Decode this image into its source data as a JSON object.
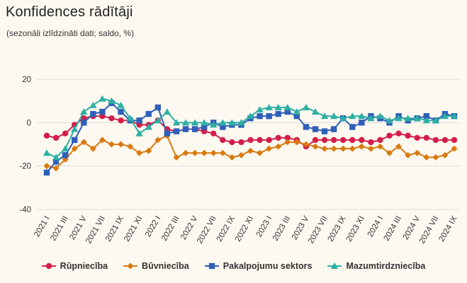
{
  "title": "Konfidences rādītāji",
  "subtitle": "(sezonāli izlīdzināti dati; saldo, %)",
  "chart_data": {
    "type": "line",
    "ylim": [
      -40,
      20
    ],
    "yticks": [
      20,
      0,
      -20,
      -40
    ],
    "grid": true,
    "legend_position": "bottom",
    "x_tick_labels": [
      "2021 I",
      "2021 III",
      "2021 V",
      "2021 VII",
      "2021 IX",
      "2021 XI",
      "2022 I",
      "2022 III",
      "2022 V",
      "2022 VII",
      "2022 IX",
      "2022 XI",
      "2023 I",
      "2023 III",
      "2023 V",
      "2023 VII",
      "2023 IX",
      "2023 XI",
      "2024 I",
      "2024 III",
      "2024 V",
      "2024 VII",
      "2024 IX"
    ],
    "x": [
      "2021 I",
      "2021 II",
      "2021 III",
      "2021 IV",
      "2021 V",
      "2021 VI",
      "2021 VII",
      "2021 VIII",
      "2021 IX",
      "2021 X",
      "2021 XI",
      "2021 XII",
      "2022 I",
      "2022 II",
      "2022 III",
      "2022 IV",
      "2022 V",
      "2022 VI",
      "2022 VII",
      "2022 VIII",
      "2022 IX",
      "2022 X",
      "2022 XI",
      "2022 XII",
      "2023 I",
      "2023 II",
      "2023 III",
      "2023 IV",
      "2023 V",
      "2023 VI",
      "2023 VII",
      "2023 VIII",
      "2023 IX",
      "2023 X",
      "2023 XI",
      "2023 XII",
      "2024 I",
      "2024 II",
      "2024 III",
      "2024 IV",
      "2024 V",
      "2024 VI",
      "2024 VII",
      "2024 VIII",
      "2024 IX"
    ],
    "series": [
      {
        "name": "Rūpniecība",
        "color": "#d21f4a",
        "marker": "circle",
        "values": [
          -6,
          -7,
          -5,
          -1,
          2,
          3,
          3,
          2,
          1,
          1,
          -1,
          -1,
          1,
          -3,
          -4,
          -3,
          -3,
          -4,
          -5,
          -8,
          -9,
          -9,
          -8,
          -8,
          -8,
          -7,
          -7,
          -8,
          -11,
          -8,
          -8,
          -8,
          -8,
          -8,
          -8,
          -9,
          -8,
          -6,
          -5,
          -6,
          -7,
          -7,
          -8,
          -8,
          -8
        ]
      },
      {
        "name": "Būvniecība",
        "color": "#d97a10",
        "marker": "diamond",
        "values": [
          -20,
          -21,
          -17,
          -12,
          -9,
          -12,
          -8,
          -10,
          -10,
          -11,
          -14,
          -13,
          -8,
          -6,
          -16,
          -14,
          -14,
          -14,
          -14,
          -14,
          -16,
          -15,
          -13,
          -14,
          -12,
          -11,
          -9,
          -9,
          -10,
          -11,
          -12,
          -12,
          -12,
          -12,
          -11,
          -12,
          -11,
          -14,
          -11,
          -15,
          -14,
          -16,
          -16,
          -15,
          -12
        ]
      },
      {
        "name": "Pakalpojumu sektors",
        "color": "#2f5fb8",
        "marker": "square",
        "values": [
          -23,
          -18,
          -15,
          -8,
          0,
          4,
          5,
          9,
          5,
          1,
          1,
          4,
          7,
          -5,
          -4,
          -3,
          -3,
          -2,
          0,
          -2,
          -1,
          -1,
          2,
          3,
          3,
          4,
          5,
          3,
          -2,
          -3,
          -4,
          -3,
          2,
          -2,
          0,
          3,
          2,
          0,
          3,
          1,
          2,
          3,
          1,
          4,
          3
        ]
      },
      {
        "name": "Mazumtirdzniecība",
        "color": "#2db0a4",
        "marker": "triangle",
        "values": [
          -14,
          -16,
          -12,
          -3,
          5,
          8,
          11,
          10,
          8,
          2,
          -5,
          -2,
          1,
          5,
          0,
          0,
          0,
          0,
          -1,
          0,
          0,
          0,
          3,
          6,
          7,
          7,
          7,
          5,
          7,
          5,
          3,
          3,
          2,
          3,
          3,
          2,
          3,
          1,
          2,
          2,
          2,
          1,
          1,
          3,
          3
        ]
      }
    ]
  }
}
